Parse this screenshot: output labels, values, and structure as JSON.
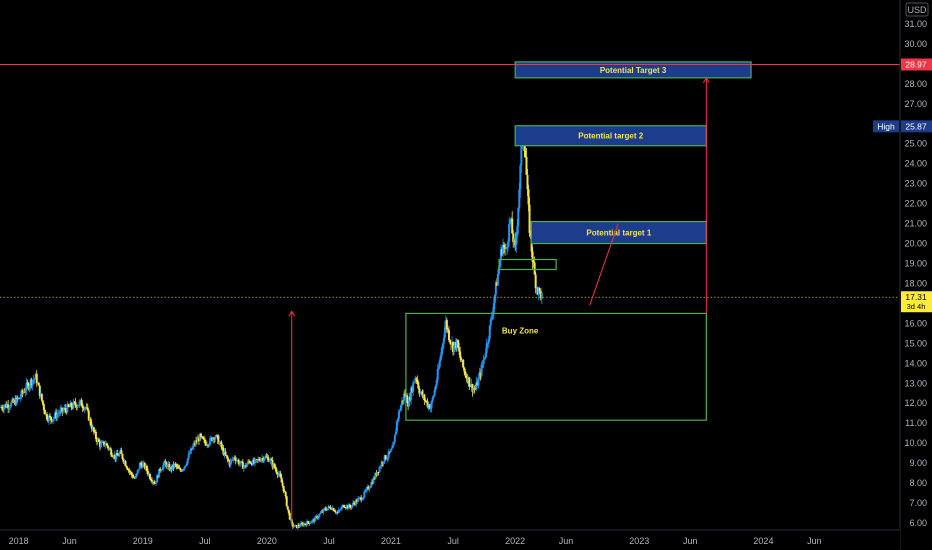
{
  "chart_data": {
    "type": "candlestick",
    "symbol_currency": "USD",
    "price_axis": {
      "min": 5.7,
      "max": 32.0,
      "ticks": [
        6,
        7,
        8,
        9,
        10,
        11,
        12,
        13,
        14,
        15,
        16,
        17,
        18,
        19,
        20,
        21,
        22,
        23,
        24,
        25,
        26,
        27,
        28,
        29,
        30,
        31
      ]
    },
    "time_axis": {
      "labels": [
        {
          "label": "2018",
          "t": 2018.0
        },
        {
          "label": "Jun",
          "t": 2018.41
        },
        {
          "label": "2019",
          "t": 2019.0
        },
        {
          "label": "Jul",
          "t": 2019.5
        },
        {
          "label": "2020",
          "t": 2020.0
        },
        {
          "label": "Jul",
          "t": 2020.5
        },
        {
          "label": "2021",
          "t": 2021.0
        },
        {
          "label": "Jul",
          "t": 2021.5
        },
        {
          "label": "2022",
          "t": 2022.0
        },
        {
          "label": "Jun",
          "t": 2022.41
        },
        {
          "label": "2023",
          "t": 2023.0
        },
        {
          "label": "Jun",
          "t": 2023.41
        },
        {
          "label": "2024",
          "t": 2024.0
        },
        {
          "label": "Jun",
          "t": 2024.41
        }
      ],
      "range": [
        2017.85,
        2025.1
      ]
    },
    "price_path": [
      [
        2017.85,
        11.8
      ],
      [
        2017.9,
        11.9
      ],
      [
        2017.95,
        12.0
      ],
      [
        2018.0,
        12.2
      ],
      [
        2018.05,
        12.7
      ],
      [
        2018.1,
        13.1
      ],
      [
        2018.14,
        13.3
      ],
      [
        2018.18,
        12.3
      ],
      [
        2018.22,
        11.4
      ],
      [
        2018.26,
        11.2
      ],
      [
        2018.32,
        11.5
      ],
      [
        2018.38,
        11.7
      ],
      [
        2018.44,
        11.9
      ],
      [
        2018.5,
        12.0
      ],
      [
        2018.54,
        11.8
      ],
      [
        2018.58,
        11.0
      ],
      [
        2018.62,
        10.3
      ],
      [
        2018.66,
        9.9
      ],
      [
        2018.7,
        10.0
      ],
      [
        2018.74,
        9.6
      ],
      [
        2018.78,
        9.3
      ],
      [
        2018.82,
        9.5
      ],
      [
        2018.86,
        9.0
      ],
      [
        2018.9,
        8.5
      ],
      [
        2018.94,
        8.2
      ],
      [
        2018.98,
        9.0
      ],
      [
        2019.02,
        8.8
      ],
      [
        2019.06,
        8.3
      ],
      [
        2019.1,
        8.0
      ],
      [
        2019.14,
        8.7
      ],
      [
        2019.18,
        9.0
      ],
      [
        2019.22,
        8.7
      ],
      [
        2019.26,
        8.9
      ],
      [
        2019.3,
        8.6
      ],
      [
        2019.34,
        8.9
      ],
      [
        2019.38,
        9.5
      ],
      [
        2019.42,
        10.0
      ],
      [
        2019.46,
        10.3
      ],
      [
        2019.5,
        10.0
      ],
      [
        2019.54,
        10.1
      ],
      [
        2019.58,
        10.4
      ],
      [
        2019.62,
        10.0
      ],
      [
        2019.66,
        9.4
      ],
      [
        2019.7,
        9.0
      ],
      [
        2019.74,
        9.3
      ],
      [
        2019.78,
        9.0
      ],
      [
        2019.82,
        8.8
      ],
      [
        2019.86,
        9.1
      ],
      [
        2019.9,
        9.0
      ],
      [
        2019.94,
        9.2
      ],
      [
        2019.98,
        9.3
      ],
      [
        2020.02,
        9.2
      ],
      [
        2020.06,
        8.8
      ],
      [
        2020.1,
        8.4
      ],
      [
        2020.14,
        7.6
      ],
      [
        2020.17,
        6.6
      ],
      [
        2020.2,
        5.9
      ],
      [
        2020.23,
        5.8
      ],
      [
        2020.27,
        5.9
      ],
      [
        2020.32,
        6.0
      ],
      [
        2020.37,
        6.1
      ],
      [
        2020.42,
        6.4
      ],
      [
        2020.47,
        6.7
      ],
      [
        2020.52,
        6.8
      ],
      [
        2020.57,
        6.5
      ],
      [
        2020.62,
        6.9
      ],
      [
        2020.67,
        6.8
      ],
      [
        2020.72,
        7.1
      ],
      [
        2020.77,
        7.3
      ],
      [
        2020.82,
        7.8
      ],
      [
        2020.86,
        8.2
      ],
      [
        2020.9,
        8.7
      ],
      [
        2020.94,
        9.2
      ],
      [
        2020.98,
        9.4
      ],
      [
        2021.02,
        9.8
      ],
      [
        2021.05,
        11.2
      ],
      [
        2021.08,
        11.9
      ],
      [
        2021.11,
        12.5
      ],
      [
        2021.14,
        12.0
      ],
      [
        2021.17,
        12.8
      ],
      [
        2021.2,
        13.4
      ],
      [
        2021.23,
        12.6
      ],
      [
        2021.26,
        12.3
      ],
      [
        2021.29,
        12.0
      ],
      [
        2021.32,
        11.8
      ],
      [
        2021.35,
        12.6
      ],
      [
        2021.38,
        13.6
      ],
      [
        2021.41,
        14.8
      ],
      [
        2021.44,
        16.1
      ],
      [
        2021.47,
        15.3
      ],
      [
        2021.5,
        14.8
      ],
      [
        2021.53,
        15.0
      ],
      [
        2021.56,
        14.2
      ],
      [
        2021.59,
        13.6
      ],
      [
        2021.62,
        13.2
      ],
      [
        2021.65,
        12.8
      ],
      [
        2021.68,
        12.7
      ],
      [
        2021.71,
        13.3
      ],
      [
        2021.74,
        14.0
      ],
      [
        2021.77,
        14.9
      ],
      [
        2021.8,
        15.9
      ],
      [
        2021.83,
        17.2
      ],
      [
        2021.86,
        18.4
      ],
      [
        2021.88,
        19.3
      ],
      [
        2021.9,
        20.0
      ],
      [
        2021.92,
        19.5
      ],
      [
        2021.94,
        20.3
      ],
      [
        2021.96,
        21.2
      ],
      [
        2021.98,
        20.4
      ],
      [
        2022.0,
        19.6
      ],
      [
        2022.02,
        21.4
      ],
      [
        2022.04,
        23.5
      ],
      [
        2022.06,
        25.6
      ],
      [
        2022.08,
        24.8
      ],
      [
        2022.1,
        22.3
      ],
      [
        2022.12,
        20.4
      ],
      [
        2022.14,
        19.3
      ],
      [
        2022.16,
        18.2
      ],
      [
        2022.18,
        17.7
      ],
      [
        2022.2,
        17.5
      ],
      [
        2022.22,
        17.31
      ]
    ],
    "current_price": "17.31",
    "current_price_countdown": "3d 4h",
    "high_label": "High",
    "high_value": "25.87",
    "target3_price": "28.97",
    "colors": {
      "up": "#2196f3",
      "down": "#f5e44a",
      "target_line": "#f23645",
      "zone_fill": "#1c3c8c",
      "zone_border": "#4caf50",
      "buyzone_border": "#4caf50",
      "arrow": "#f23645",
      "current_price_line": "#d4c700",
      "high_badge": "#1c3c8c",
      "target_badge": "#f23645",
      "current_badge": "#ffeb3b"
    },
    "zones": [
      {
        "label": "Potential Target 3",
        "t0": 2022.0,
        "t1": 2023.9,
        "p0": 28.3,
        "p1": 29.1,
        "filled": true
      },
      {
        "label": "Potential target 2",
        "t0": 2022.0,
        "t1": 2023.54,
        "p0": 24.9,
        "p1": 25.9,
        "filled": true
      },
      {
        "label": "Potential target 1",
        "t0": 2022.13,
        "t1": 2023.54,
        "p0": 20.0,
        "p1": 21.1,
        "filled": true
      },
      {
        "label": "",
        "t0": 2021.87,
        "t1": 2022.33,
        "p0": 18.7,
        "p1": 19.2,
        "filled": false
      },
      {
        "label": "Buy Zone",
        "t0": 2021.12,
        "t1": 2023.54,
        "p0": 11.15,
        "p1": 16.5,
        "filled": false
      }
    ]
  }
}
